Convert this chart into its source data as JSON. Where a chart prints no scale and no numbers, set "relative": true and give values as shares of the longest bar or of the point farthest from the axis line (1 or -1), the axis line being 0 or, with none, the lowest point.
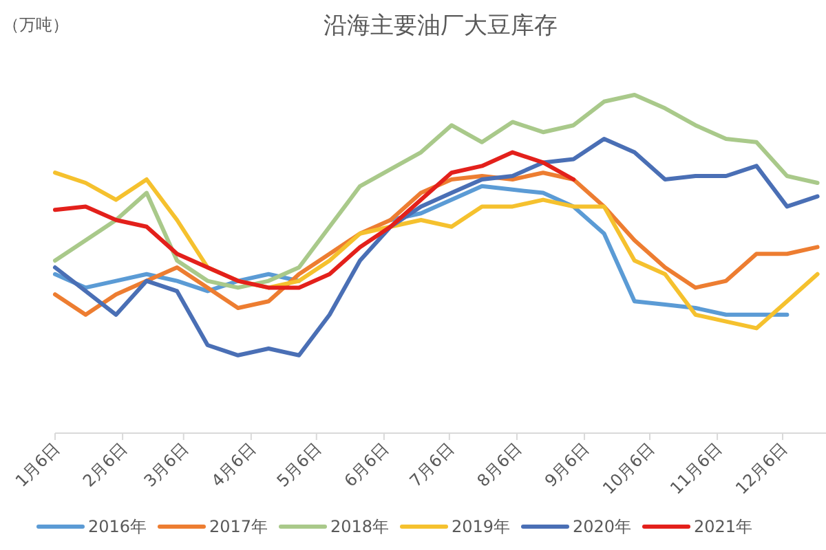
{
  "chart_data": {
    "type": "line",
    "title": "沿海主要油厂大豆库存",
    "ylabel": "（万吨）",
    "relative": true,
    "legend": "bottom",
    "line_style": "solid",
    "marker": "none",
    "x": [
      "--01-06",
      "--01-20",
      "--02-03",
      "--02-17",
      "--03-03",
      "--03-17",
      "--03-31",
      "--04-14",
      "--04-28",
      "--05-12",
      "--05-26",
      "--06-09",
      "--06-23",
      "--07-07",
      "--07-21",
      "--08-04",
      "--08-18",
      "--09-01",
      "--09-15",
      "--09-29",
      "--10-13",
      "--10-27",
      "--11-10",
      "--11-24",
      "--12-08",
      "--12-22"
    ],
    "xlim": [
      "--01-06",
      "--12-24"
    ],
    "xticks": [
      {
        "value": "--01-06",
        "label": "1月6日"
      },
      {
        "value": "--02-06",
        "label": "2月6日"
      },
      {
        "value": "--03-06",
        "label": "3月6日"
      },
      {
        "value": "--04-06",
        "label": "4月6日"
      },
      {
        "value": "--05-06",
        "label": "5月6日"
      },
      {
        "value": "--06-06",
        "label": "6月6日"
      },
      {
        "value": "--07-06",
        "label": "7月6日"
      },
      {
        "value": "--08-06",
        "label": "8月6日"
      },
      {
        "value": "--09-06",
        "label": "9月6日"
      },
      {
        "value": "--10-06",
        "label": "10月6日"
      },
      {
        "value": "--11-06",
        "label": "11月6日"
      },
      {
        "value": "--12-06",
        "label": "12月6日"
      }
    ],
    "series": [
      {
        "name": "2016年",
        "color": "#5b9bd5",
        "values": [
          0.47,
          0.43,
          0.45,
          0.47,
          0.45,
          0.42,
          0.45,
          0.47,
          0.45,
          null,
          null,
          0.63,
          0.65,
          0.69,
          0.73,
          0.72,
          0.71,
          0.67,
          0.59,
          0.39,
          0.38,
          0.37,
          0.35,
          0.35,
          0.35,
          null
        ]
      },
      {
        "name": "2017年",
        "color": "#ed7d31",
        "values": [
          0.41,
          0.35,
          0.41,
          0.45,
          0.49,
          0.43,
          0.37,
          0.39,
          0.47,
          0.53,
          0.59,
          0.63,
          0.71,
          0.75,
          0.76,
          0.75,
          0.77,
          0.75,
          0.67,
          0.57,
          0.49,
          0.43,
          0.45,
          0.53,
          0.53,
          0.55
        ]
      },
      {
        "name": "2018年",
        "color": "#a9c98a",
        "values": [
          0.51,
          0.57,
          0.63,
          0.71,
          0.51,
          0.45,
          0.43,
          0.45,
          0.49,
          0.61,
          0.73,
          0.78,
          0.83,
          0.91,
          0.86,
          0.92,
          0.89,
          0.91,
          0.98,
          1.0,
          0.96,
          0.91,
          0.87,
          0.86,
          0.76,
          0.74
        ]
      },
      {
        "name": "2019年",
        "color": "#f5c12e",
        "values": [
          0.77,
          0.74,
          0.69,
          0.75,
          0.63,
          0.49,
          0.45,
          0.43,
          0.45,
          0.51,
          0.59,
          0.61,
          0.63,
          0.61,
          0.67,
          0.67,
          0.69,
          0.67,
          0.67,
          0.51,
          0.47,
          0.35,
          0.33,
          0.31,
          0.39,
          0.47
        ]
      },
      {
        "name": "2020年",
        "color": "#4a6fb5",
        "values": [
          0.49,
          0.42,
          0.35,
          0.45,
          0.42,
          0.26,
          0.23,
          0.25,
          0.23,
          0.35,
          0.51,
          0.61,
          0.67,
          0.71,
          0.75,
          0.76,
          0.8,
          0.81,
          0.87,
          0.83,
          0.75,
          0.76,
          0.76,
          0.79,
          0.67,
          0.7
        ]
      },
      {
        "name": "2021年",
        "color": "#e3201b",
        "values": [
          0.66,
          0.67,
          0.63,
          0.61,
          0.53,
          0.49,
          0.45,
          0.43,
          0.43,
          0.47,
          0.55,
          0.61,
          0.69,
          0.77,
          0.79,
          0.83,
          0.8,
          0.75,
          null,
          null,
          null,
          null,
          null,
          null,
          null,
          null
        ]
      }
    ]
  }
}
